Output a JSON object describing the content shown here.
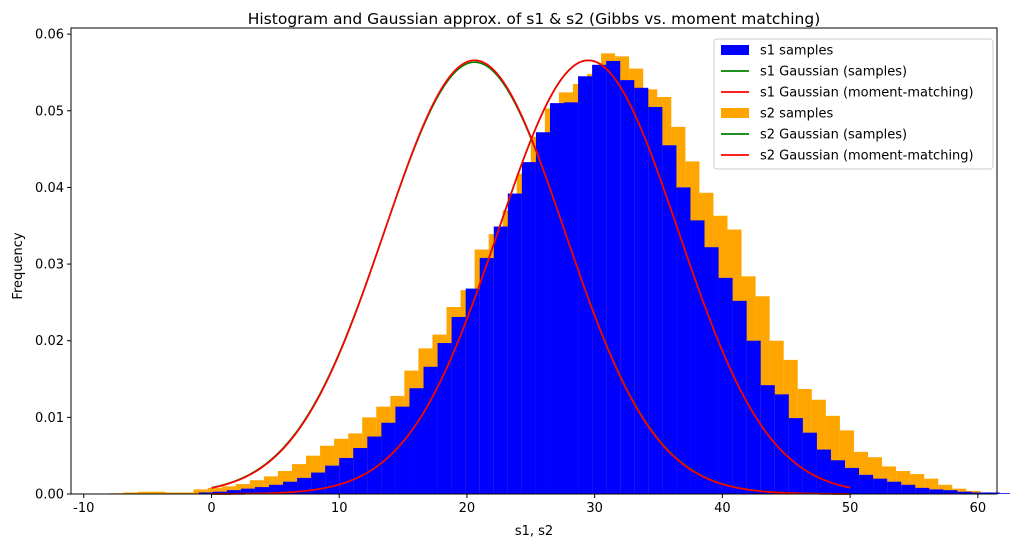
{
  "chart_data": {
    "type": "histogram",
    "title": "Histogram and Gaussian approx. of s1 & s2 (Gibbs vs. moment matching)",
    "xlabel": "s1, s2",
    "ylabel": "Frequency",
    "xlim": [
      -11,
      61.5
    ],
    "ylim": [
      0,
      0.0608
    ],
    "xticks": [
      -10,
      0,
      10,
      20,
      30,
      40,
      50,
      60
    ],
    "yticks": [
      0.0,
      0.01,
      0.02,
      0.03,
      0.04,
      0.05,
      0.06
    ],
    "ytick_labels": [
      "0.00",
      "0.01",
      "0.02",
      "0.03",
      "0.04",
      "0.05",
      "0.06"
    ],
    "grid": false,
    "legend_position": "top-right",
    "colors": {
      "s1": "#0000ff",
      "s2": "#ffa500",
      "gauss_samples": "#008000",
      "gauss_mm": "#ff0000"
    },
    "legend": [
      {
        "label": "s1 samples",
        "kind": "patch",
        "color": "#0000ff"
      },
      {
        "label": "s1 Gaussian (samples)",
        "kind": "line",
        "color": "#008000"
      },
      {
        "label": "s1 Gaussian (moment-matching)",
        "kind": "line",
        "color": "#ff0000"
      },
      {
        "label": "s2 samples",
        "kind": "patch",
        "color": "#ffa500"
      },
      {
        "label": "s2 Gaussian (samples)",
        "kind": "line",
        "color": "#008000"
      },
      {
        "label": "s2 Gaussian (moment-matching)",
        "kind": "line",
        "color": "#ff0000"
      }
    ],
    "series": [
      {
        "name": "s1 samples",
        "kind": "hist",
        "color": "#0000ff",
        "bin_start": -1.0,
        "bin_width": 1.1,
        "values": [
          0.0002,
          0.0003,
          0.0005,
          0.0007,
          0.0009,
          0.0012,
          0.0016,
          0.0021,
          0.0028,
          0.0037,
          0.0047,
          0.006,
          0.0075,
          0.0093,
          0.0114,
          0.0138,
          0.0166,
          0.0197,
          0.0231,
          0.0268,
          0.0308,
          0.0349,
          0.0392,
          0.0433,
          0.0472,
          0.051,
          0.0511,
          0.0545,
          0.056,
          0.0565,
          0.054,
          0.053,
          0.0505,
          0.0455,
          0.04,
          0.0357,
          0.0322,
          0.0282,
          0.0252,
          0.02,
          0.0142,
          0.013,
          0.0099,
          0.008,
          0.0058,
          0.0044,
          0.0034,
          0.0025,
          0.002,
          0.0016,
          0.0012,
          0.0008,
          0.0006,
          0.0005,
          0.0003,
          0.0002,
          0.0002,
          0.0001,
          0.0001,
          0.0001
        ]
      },
      {
        "name": "s2 samples",
        "kind": "hist",
        "color": "#ffa500",
        "bin_start": -8.0,
        "bin_width": 1.1,
        "values": [
          0.0001,
          0.0002,
          0.0003,
          0.0003,
          0.0002,
          0.0002,
          0.0006,
          0.0008,
          0.001,
          0.0013,
          0.0018,
          0.0023,
          0.003,
          0.0039,
          0.005,
          0.0063,
          0.0072,
          0.0079,
          0.01,
          0.0114,
          0.0128,
          0.0161,
          0.019,
          0.0208,
          0.0244,
          0.0266,
          0.0319,
          0.0339,
          0.037,
          0.0418,
          0.0466,
          0.0503,
          0.0524,
          0.0535,
          0.0548,
          0.0575,
          0.0571,
          0.0555,
          0.0528,
          0.0518,
          0.0479,
          0.0434,
          0.0393,
          0.0363,
          0.0345,
          0.0284,
          0.0258,
          0.02,
          0.0175,
          0.0137,
          0.0123,
          0.0102,
          0.0083,
          0.0055,
          0.0048,
          0.0036,
          0.003,
          0.0026,
          0.002,
          0.0012,
          0.0007,
          0.0004,
          0.0002,
          0.0001
        ]
      },
      {
        "name": "s1 Gaussian (samples)",
        "kind": "gaussian",
        "color": "#008000",
        "mean": 29.5,
        "std": 7.05,
        "x_range": [
          0,
          50
        ]
      },
      {
        "name": "s1 Gaussian (moment-matching)",
        "kind": "gaussian",
        "color": "#ff0000",
        "mean": 29.5,
        "std": 7.05,
        "x_range": [
          0,
          50
        ]
      },
      {
        "name": "s2 Gaussian (samples)",
        "kind": "gaussian",
        "color": "#008000",
        "mean": 20.6,
        "std": 7.08,
        "x_range": [
          0,
          50
        ]
      },
      {
        "name": "s2 Gaussian (moment-matching)",
        "kind": "gaussian",
        "color": "#ff0000",
        "mean": 20.6,
        "std": 7.05,
        "x_range": [
          0,
          50
        ]
      }
    ]
  }
}
